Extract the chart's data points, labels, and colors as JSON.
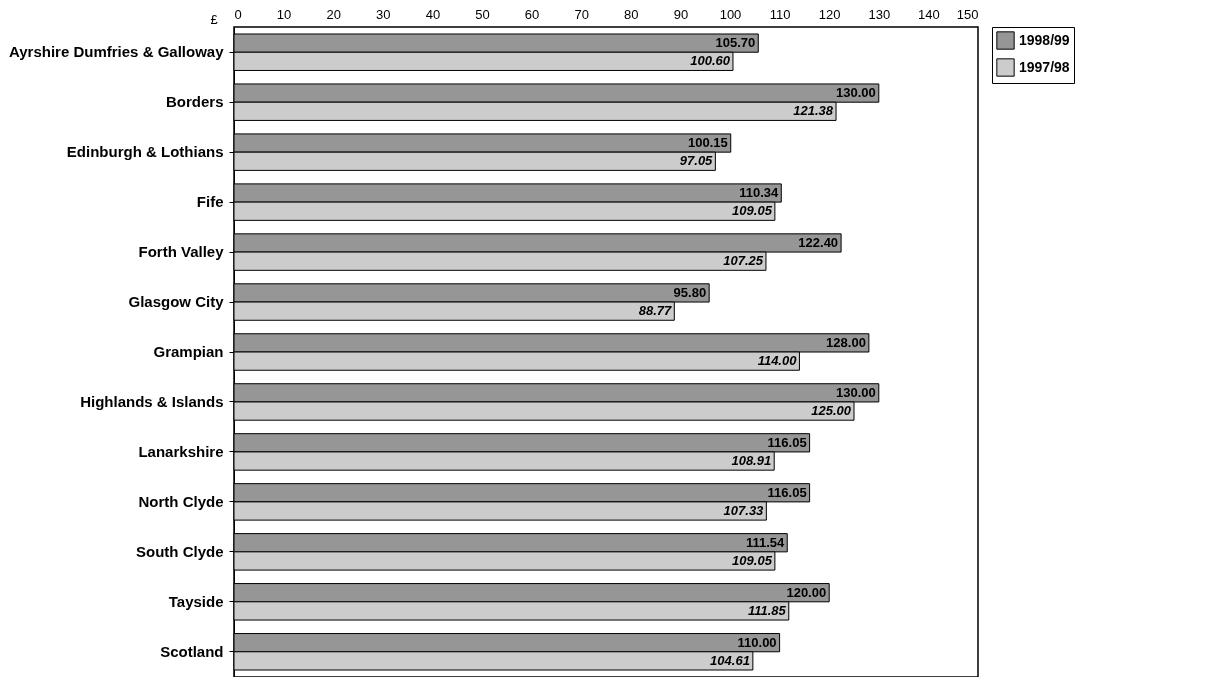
{
  "chart_data": {
    "type": "bar",
    "orientation": "horizontal",
    "xlabel": "£",
    "categories": [
      "Ayrshire Dumfries & Galloway",
      "Borders",
      "Edinburgh & Lothians",
      "Fife",
      "Forth Valley",
      "Glasgow City",
      "Grampian",
      "Highlands & Islands",
      "Lanarkshire",
      "North Clyde",
      "South Clyde ",
      "Tayside",
      "Scotland"
    ],
    "series": [
      {
        "name": "1998/99",
        "color": "#969696",
        "values": [
          105.7,
          130,
          100.15,
          110.34,
          122.4,
          95.8,
          128,
          130,
          116.05,
          116.05,
          111.54,
          120,
          110
        ],
        "value_labels": [
          "105.70",
          "130.00",
          "100.15",
          "110.34",
          "122.40",
          "95.80",
          "128.00",
          "130.00",
          "116.05",
          "116.05",
          "111.54",
          "120.00",
          "110.00"
        ]
      },
      {
        "name": "1997/98",
        "color": "#cccccc",
        "values": [
          100.6,
          121.38,
          97.05,
          109.05,
          107.25,
          88.77,
          114,
          125,
          108.91,
          107.33,
          109.05,
          111.85,
          104.61
        ],
        "value_labels": [
          "100.60",
          "121.38",
          "97.05",
          "109.05",
          "107.25",
          "88.77",
          "114.00",
          "125.00",
          "108.91",
          "107.33",
          "109.05",
          "111.85",
          "104.61"
        ]
      }
    ],
    "xlim": [
      0,
      150
    ],
    "xticks": [
      0,
      10,
      20,
      30,
      40,
      50,
      60,
      70,
      80,
      90,
      100,
      110,
      120,
      130,
      140,
      150
    ],
    "grid": false,
    "legend": "top right"
  }
}
